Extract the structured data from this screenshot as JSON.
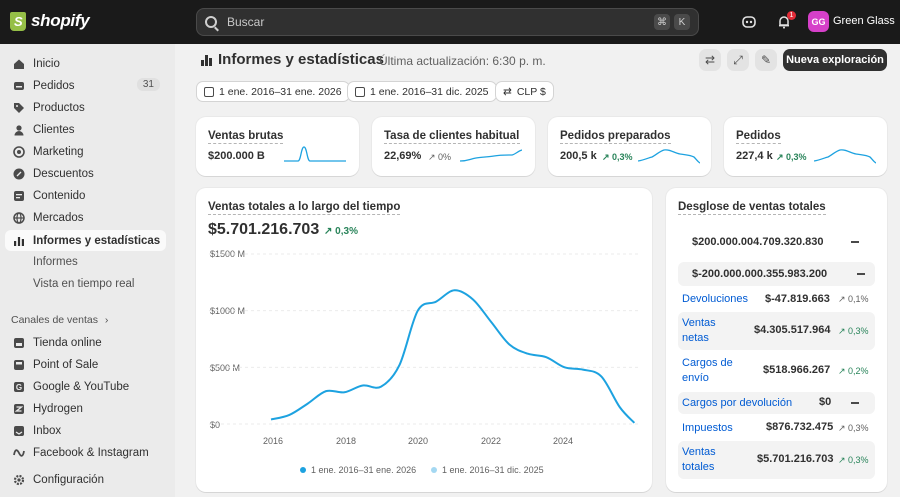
{
  "brand": {
    "name": "shopify",
    "accent": "#95bf47"
  },
  "search": {
    "placeholder": "Buscar",
    "shortcut": [
      "⌘",
      "K"
    ]
  },
  "topbar": {
    "notification_count": "1",
    "avatar_initials": "GG",
    "store_name": "Green Glass"
  },
  "sidebar": {
    "items": [
      {
        "label": "Inicio",
        "icon": "home-icon"
      },
      {
        "label": "Pedidos",
        "icon": "orders-icon",
        "count": "31"
      },
      {
        "label": "Productos",
        "icon": "tag-icon"
      },
      {
        "label": "Clientes",
        "icon": "person-icon"
      },
      {
        "label": "Marketing",
        "icon": "target-icon"
      },
      {
        "label": "Descuentos",
        "icon": "discount-icon"
      },
      {
        "label": "Contenido",
        "icon": "content-icon"
      },
      {
        "label": "Mercados",
        "icon": "globe-icon"
      },
      {
        "label": "Informes y estadísticas",
        "icon": "chart-icon"
      }
    ],
    "subitems": [
      "Informes",
      "Vista en tiempo real"
    ],
    "channels_label": "Canales de ventas",
    "channels": [
      {
        "label": "Tienda online",
        "icon": "store-icon"
      },
      {
        "label": "Point of Sale",
        "icon": "pos-icon"
      },
      {
        "label": "Google & YouTube",
        "icon": "google-icon"
      },
      {
        "label": "Hydrogen",
        "icon": "hydrogen-icon"
      },
      {
        "label": "Inbox",
        "icon": "inbox-icon"
      },
      {
        "label": "Facebook & Instagram",
        "icon": "meta-icon"
      }
    ],
    "settings": "Configuración"
  },
  "header": {
    "title": "Informes y estadísticas",
    "updated": "Última actualización: 6:30 p. m.",
    "new_exploration": "Nueva exploración"
  },
  "filters": {
    "range": "1 ene. 2016–31 ene. 2026",
    "compare": "1 ene. 2016–31 dic. 2025",
    "currency": "CLP $"
  },
  "metrics": [
    {
      "title": "Ventas brutas",
      "value": "$200.000 B",
      "change": ""
    },
    {
      "title": "Tasa de clientes habitual...",
      "value": "22,69%",
      "change": "0%"
    },
    {
      "title": "Pedidos preparados",
      "value": "200,5 k",
      "change": "0,3%"
    },
    {
      "title": "Pedidos",
      "value": "227,4 k",
      "change": "0,3%"
    }
  ],
  "sales_chart": {
    "title": "Ventas totales a lo largo del tiempo",
    "total": "$5.701.216.703",
    "change": "0,3%",
    "legend": [
      "1 ene. 2016–31 ene. 2026",
      "1 ene. 2016–31 dic. 2025"
    ]
  },
  "chart_data": {
    "type": "line",
    "title": "Ventas totales a lo largo del tiempo",
    "y_ticks": [
      "$1500 M",
      "$1000 M",
      "$500 M",
      "$0"
    ],
    "x_ticks": [
      "2016",
      "2018",
      "2020",
      "2022",
      "2024"
    ],
    "ylim": [
      0,
      1500
    ],
    "xlim": [
      2016,
      2026
    ],
    "series": [
      {
        "name": "1 ene. 2016–31 ene. 2026",
        "color": "#1da2e0",
        "x": [
          2016,
          2016.5,
          2017,
          2017.5,
          2018,
          2018.5,
          2019,
          2019.5,
          2020,
          2020.5,
          2021,
          2021.5,
          2022,
          2022.5,
          2023,
          2023.5,
          2024,
          2024.5,
          2025,
          2025.5,
          2025.9
        ],
        "y": [
          40,
          80,
          180,
          290,
          280,
          340,
          330,
          520,
          1000,
          1080,
          1180,
          1100,
          900,
          700,
          620,
          590,
          500,
          480,
          420,
          150,
          10
        ]
      }
    ],
    "grid": true
  },
  "breakdown": {
    "title": "Desglose de ventas totales",
    "gross": "$200.000.004.709.320.830",
    "discounts": "$-200.000.000.355.983.200",
    "rows": [
      {
        "label": "Devoluciones",
        "amount": "$-47.819.663",
        "change": "0,1%"
      },
      {
        "label": "Ventas netas",
        "amount": "$4.305.517.964",
        "change": "0,3%"
      },
      {
        "label": "Cargos de envío",
        "amount": "$518.966.267",
        "change": "0,2%"
      },
      {
        "label": "Cargos por devolución",
        "amount": "$0",
        "change": ""
      },
      {
        "label": "Impuestos",
        "amount": "$876.732.475",
        "change": "0,3%"
      },
      {
        "label": "Ventas totales",
        "amount": "$5.701.216.703",
        "change": "0,3%"
      }
    ]
  }
}
